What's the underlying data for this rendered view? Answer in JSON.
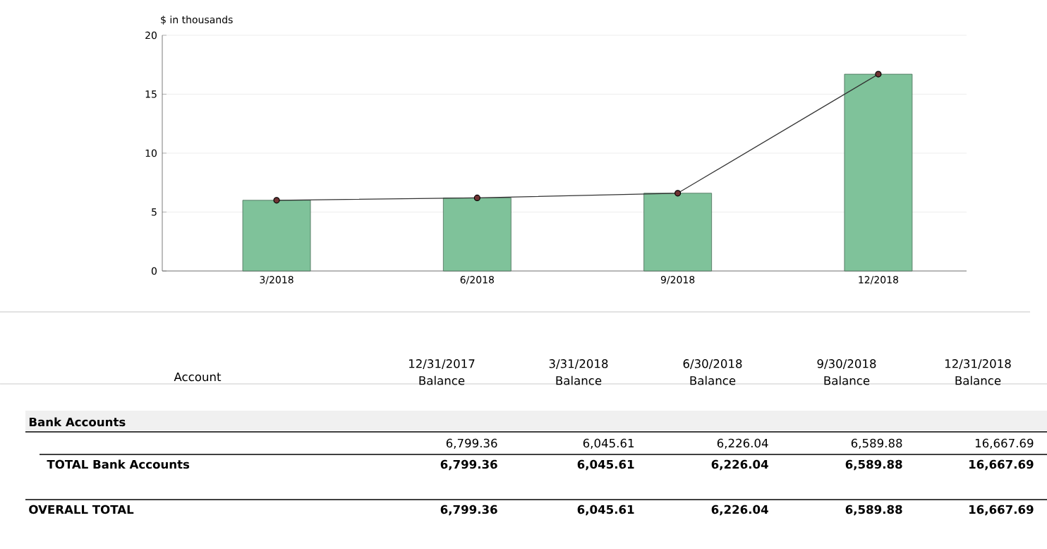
{
  "chart_data": [
    {
      "type": "bar",
      "ylabel": "$ in thousands",
      "categories": [
        "3/2018",
        "6/2018",
        "9/2018",
        "12/2018"
      ],
      "series": [
        {
          "type": "bar",
          "color": "#7fc29a",
          "values": [
            6.0,
            6.2,
            6.6,
            16.7
          ]
        },
        {
          "type": "line",
          "color": "#333333",
          "marker": "circle",
          "values": [
            6.0,
            6.2,
            6.6,
            16.7
          ]
        }
      ],
      "ylim": [
        0,
        20
      ],
      "yticks": [
        0,
        5,
        10,
        15,
        20
      ],
      "grid": "y"
    },
    {
      "type": "other",
      "categories": [
        "12/31/2017 Balance",
        "3/31/2018 Balance",
        "6/30/2018 Balance",
        "9/30/2018 Balance",
        "12/31/2018 Balance"
      ],
      "annotations": [
        "Account",
        "Bank Accounts"
      ],
      "series": [
        {
          "values": [
            6799.36,
            6045.61,
            6226.04,
            6589.88,
            16667.69
          ],
          "value_labels": [
            "6,799.36",
            "6,045.61",
            "6,226.04",
            "6,589.88",
            "16,667.69"
          ]
        },
        {
          "name": "TOTAL Bank Accounts",
          "values": [
            6799.36,
            6045.61,
            6226.04,
            6589.88,
            16667.69
          ],
          "value_labels": [
            "6,799.36",
            "6,045.61",
            "6,226.04",
            "6,589.88",
            "16,667.69"
          ]
        },
        {
          "name": "OVERALL TOTAL",
          "values": [
            6799.36,
            6045.61,
            6226.04,
            6589.88,
            16667.69
          ],
          "value_labels": [
            "6,799.36",
            "6,045.61",
            "6,226.04",
            "6,589.88",
            "16,667.69"
          ]
        }
      ]
    }
  ]
}
